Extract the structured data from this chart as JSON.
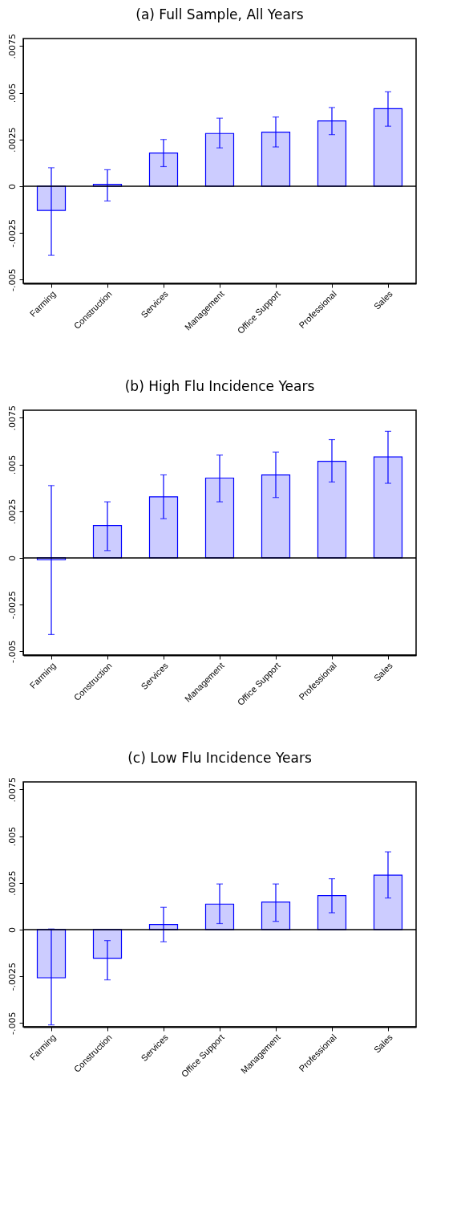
{
  "chart_data": [
    {
      "type": "bar",
      "title": "(a) Full Sample, All Years",
      "categories": [
        "Farming",
        "Construction",
        "Services",
        "Management",
        "Office Support",
        "Professional",
        "Sales"
      ],
      "series": [
        {
          "color": "#ccccff",
          "values": [
            -0.0013,
            0.0001,
            0.00177,
            0.00282,
            0.00289,
            0.00349,
            0.00415
          ],
          "errors": [
            [
              -0.0037,
              0.00099
            ],
            [
              -0.00079,
              0.00088
            ],
            [
              0.00105,
              0.0025
            ],
            [
              0.00205,
              0.00364
            ],
            [
              0.0021,
              0.0037
            ],
            [
              0.00276,
              0.00421
            ],
            [
              0.00321,
              0.00505
            ]
          ]
        }
      ],
      "ylim": [
        -0.0052,
        0.0079
      ],
      "yticks": [
        {
          "value": -0.005,
          "label": "-.005"
        },
        {
          "value": -0.0025,
          "label": "-.0025"
        },
        {
          "value": 0,
          "label": "0"
        },
        {
          "value": 0.0025,
          "label": ".0025"
        },
        {
          "value": 0.005,
          "label": ".005"
        },
        {
          "value": 0.0075,
          "label": ".0075"
        }
      ],
      "ref_lines": [
        {
          "axis": "y",
          "value": 0,
          "color": "#000000"
        }
      ],
      "grid": false,
      "legend": false
    },
    {
      "type": "bar",
      "title": "(b) High Flu Incidence Years",
      "categories": [
        "Farming",
        "Construction",
        "Services",
        "Management",
        "Office Support",
        "Professional",
        "Sales"
      ],
      "series": [
        {
          "color": "#ccccff",
          "values": [
            -0.0001,
            0.00173,
            0.00327,
            0.00427,
            0.00444,
            0.00517,
            0.0054
          ],
          "errors": [
            [
              -0.0041,
              0.00387
            ],
            [
              0.00039,
              0.003
            ],
            [
              0.0021,
              0.00444
            ],
            [
              0.003,
              0.0055
            ],
            [
              0.00323,
              0.00566
            ],
            [
              0.00406,
              0.00633
            ],
            [
              0.00399,
              0.00677
            ]
          ]
        }
      ],
      "ylim": [
        -0.0052,
        0.0079
      ],
      "yticks": [
        {
          "value": -0.005,
          "label": "-.005"
        },
        {
          "value": -0.0025,
          "label": "-.0025"
        },
        {
          "value": 0,
          "label": "0"
        },
        {
          "value": 0.0025,
          "label": ".0025"
        },
        {
          "value": 0.005,
          "label": ".005"
        },
        {
          "value": 0.0075,
          "label": ".0075"
        }
      ],
      "ref_lines": [
        {
          "axis": "y",
          "value": 0,
          "color": "#000000"
        }
      ],
      "grid": false,
      "legend": false
    },
    {
      "type": "bar",
      "title": "(c) Low Flu Incidence Years",
      "categories": [
        "Farming",
        "Construction",
        "Services",
        "Office Support",
        "Management",
        "Professional",
        "Sales"
      ],
      "series": [
        {
          "color": "#ccccff",
          "values": [
            -0.00258,
            -0.00153,
            0.00027,
            0.00136,
            0.00147,
            0.00182,
            0.00291
          ],
          "errors": [
            [
              -0.0051,
              3e-05
            ],
            [
              -0.00269,
              -0.00059
            ],
            [
              -0.00065,
              0.00119
            ],
            [
              0.00032,
              0.00244
            ],
            [
              0.00044,
              0.00244
            ],
            [
              0.0009,
              0.00272
            ],
            [
              0.00169,
              0.00416
            ]
          ]
        }
      ],
      "ylim": [
        -0.0052,
        0.0079
      ],
      "yticks": [
        {
          "value": -0.005,
          "label": "-.005"
        },
        {
          "value": -0.0025,
          "label": "-.0025"
        },
        {
          "value": 0,
          "label": "0"
        },
        {
          "value": 0.0025,
          "label": ".0025"
        },
        {
          "value": 0.005,
          "label": ".005"
        },
        {
          "value": 0.0075,
          "label": ".0075"
        }
      ],
      "ref_lines": [
        {
          "axis": "y",
          "value": 0,
          "color": "#000000"
        }
      ],
      "grid": false,
      "legend": false
    }
  ]
}
